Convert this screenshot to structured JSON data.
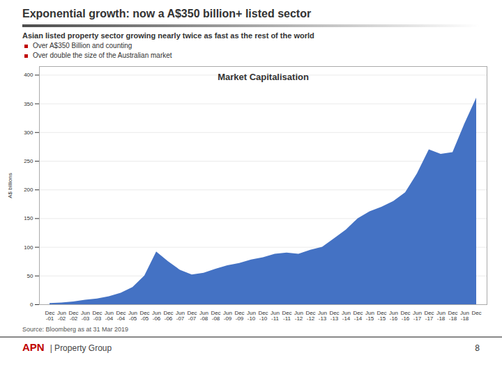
{
  "chart_data": {
    "type": "area",
    "title": "Exponential growth: now a A$350 billion+ listed sector",
    "subtitle": "Asian listed property sector growing nearly twice as fast as the rest of the world",
    "bullets": [
      "Over A$350 Billion and counting",
      "Over double the size of the Australian market"
    ],
    "chart_title": "Market Capitalisation",
    "ylabel": "A$ billions",
    "source": "Source: Bloomberg as at 31 Mar 2019",
    "logo": [
      "APN",
      "| Property Group"
    ],
    "page_number": "8",
    "categories": [
      "Dec",
      "Jun",
      "Dec",
      "Jun",
      "Dec",
      "Jun",
      "Dec",
      "Jun",
      "Dec",
      "Jun",
      "Dec",
      "Jun",
      "Dec",
      "Jun",
      "Dec",
      "Jun",
      "Dec",
      "Jun",
      "Dec",
      "Jun",
      "Dec",
      "Jun",
      "Dec",
      "Jun",
      "Dec",
      "Jun",
      "Dec",
      "Jun",
      "Dec",
      "Jun",
      "Dec",
      "Jun",
      "Dec",
      "Jun",
      "Dec",
      "Jun",
      "Dec"
    ],
    "categories_row2": [
      "-01",
      "-02",
      "-02",
      "-03",
      "-03",
      "-04",
      "-04",
      "-05",
      "-05",
      "-06",
      "-06",
      "-07",
      "-07",
      "-08",
      "-08",
      "-09",
      "-09",
      "-10",
      "-10",
      "-11",
      "-11",
      "-12",
      "-12",
      "-13",
      "-13",
      "-14",
      "-14",
      "-15",
      "-15",
      "-16",
      "-16",
      "-17",
      "-17",
      "-18",
      "-18",
      "-18",
      null
    ],
    "values": [
      2,
      3,
      5,
      8,
      10,
      14,
      20,
      30,
      50,
      92,
      75,
      60,
      52,
      55,
      62,
      68,
      72,
      78,
      82,
      88,
      90,
      88,
      95,
      100,
      115,
      130,
      150,
      162,
      170,
      180,
      195,
      228,
      270,
      262,
      265,
      315,
      360
    ],
    "color": "#4472C4",
    "ylim": [
      0,
      415
    ],
    "yticks": [
      0,
      50,
      100,
      150,
      200,
      250,
      300,
      350,
      400
    ],
    "grid": true
  }
}
